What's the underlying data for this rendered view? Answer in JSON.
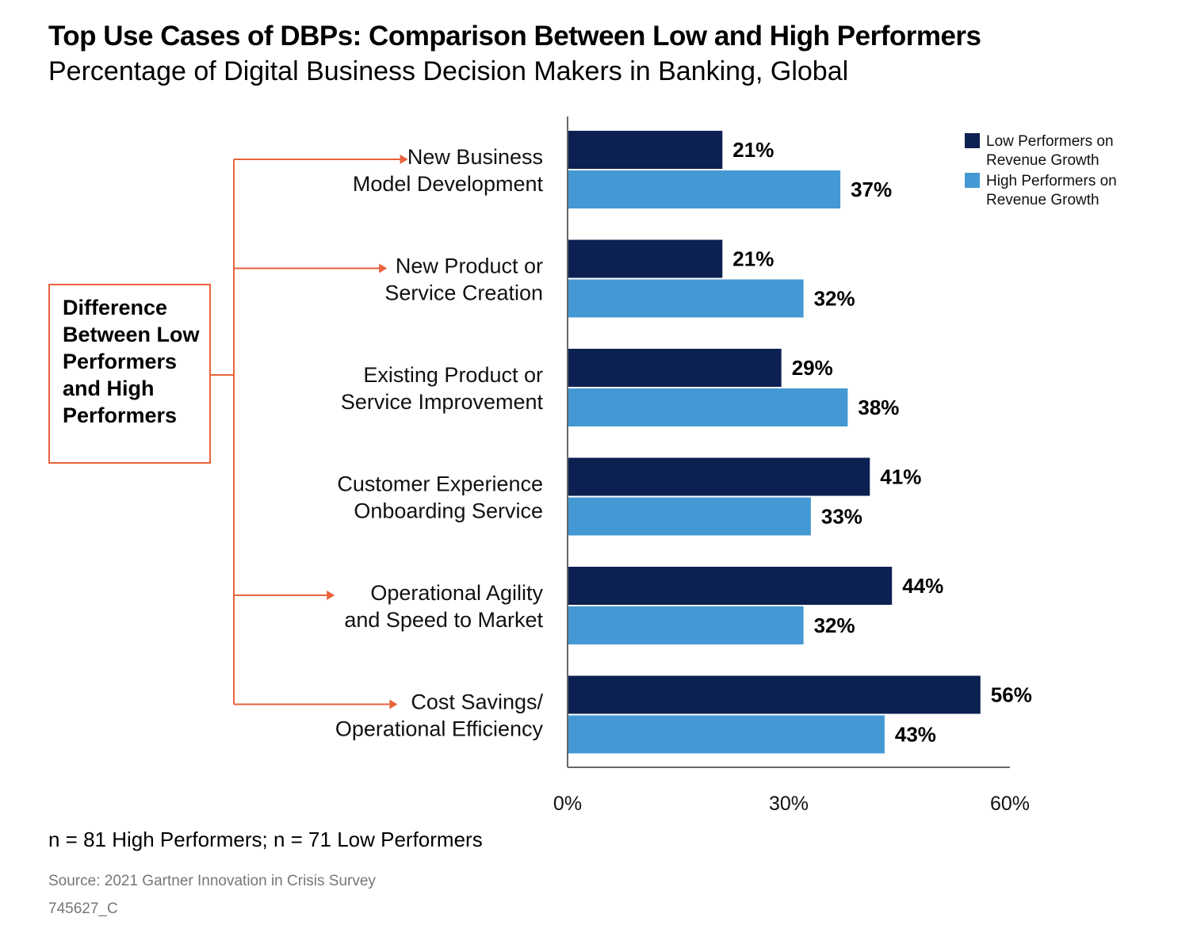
{
  "header": {
    "title": "Top Use Cases of DBPs: Comparison Between Low and High Performers",
    "subtitle": "Percentage of Digital Business Decision Makers in Banking, Global"
  },
  "annotation": {
    "box_text": "Difference Between Low Performers and High Performers",
    "accent_color": "#e8643c"
  },
  "chart_data": {
    "type": "bar",
    "orientation": "horizontal",
    "categories": [
      [
        "New Business",
        "Model Development"
      ],
      [
        "New Product or",
        "Service Creation"
      ],
      [
        "Existing Product or",
        "Service Improvement"
      ],
      [
        "Customer Experience",
        "Onboarding Service"
      ],
      [
        "Operational Agility",
        "and Speed to Market"
      ],
      [
        "Cost Savings/",
        "Operational Efficiency"
      ]
    ],
    "highlighted_categories": [
      0,
      1,
      4,
      5
    ],
    "series": [
      {
        "name": "Low Performers on Revenue Growth",
        "legend_lines": [
          "Low Performers on",
          "Revenue Growth"
        ],
        "color": "#0d2052",
        "values": [
          21,
          21,
          29,
          41,
          44,
          56
        ]
      },
      {
        "name": "High Performers on Revenue Growth",
        "legend_lines": [
          "High Performers on",
          "Revenue Growth"
        ],
        "color": "#4499d4",
        "values": [
          37,
          32,
          38,
          33,
          32,
          43
        ]
      }
    ],
    "value_suffix": "%",
    "xlim": [
      0,
      60
    ],
    "xticks": [
      0,
      30,
      60
    ],
    "xtick_labels": [
      "0%",
      "30%",
      "60%"
    ],
    "legend_position": "top-right",
    "grid": false
  },
  "footer": {
    "note": "n = 81 High Performers; n = 71 Low Performers",
    "source": "Source: 2021 Gartner Innovation in Crisis Survey",
    "doc_id": "745627_C"
  }
}
